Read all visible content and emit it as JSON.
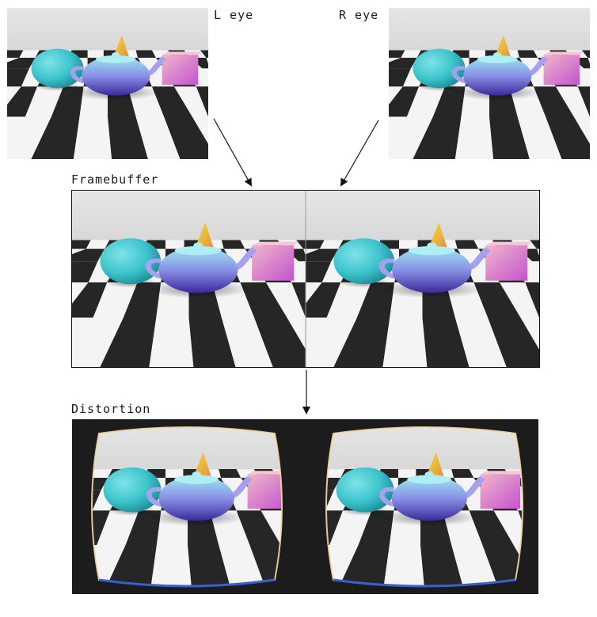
{
  "labels": {
    "left_eye": "L eye",
    "right_eye": "R eye",
    "framebuffer": "Framebuffer",
    "distortion": "Distortion"
  },
  "colors": {
    "sky": "#e2e2e2",
    "floor_dark": "#262626",
    "floor_light": "#f4f4f4",
    "sphere": "#3cc4cc",
    "cone": "#e8c23a",
    "cube": "#d88ad0",
    "teapot": "#7f86e0",
    "distortion_bg": "#1c1c1c"
  }
}
